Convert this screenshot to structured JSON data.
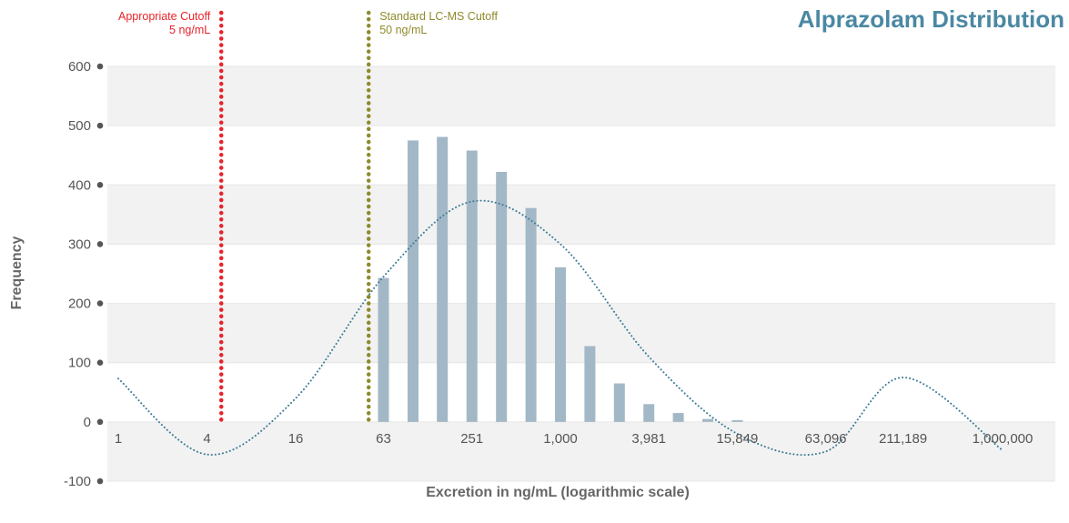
{
  "chart_data": {
    "type": "bar",
    "title": "Alprazolam Distribution",
    "xlabel": "Excretion in ng/mL (logarithmic scale)",
    "ylabel": "Frequency",
    "x_scale": "log",
    "x_ticks": [
      "1",
      "4",
      "16",
      "63",
      "251",
      "1,000",
      "3,981",
      "15,849",
      "63,096",
      "211,189",
      "1,000,000"
    ],
    "ylim": [
      -100,
      600
    ],
    "y_ticks": [
      "600",
      "500",
      "400",
      "300",
      "200",
      "100",
      "0",
      "-100"
    ],
    "grid": "alternating horizontal bands",
    "bars": {
      "x": [
        63,
        100,
        158,
        251,
        398,
        631,
        1000,
        1585,
        2512,
        3981,
        6310,
        10000,
        15849
      ],
      "values": [
        243,
        475,
        481,
        458,
        422,
        361,
        261,
        128,
        65,
        30,
        15,
        5,
        3
      ]
    },
    "trend_line": {
      "style": "dotted",
      "x": [
        1,
        4,
        16,
        63,
        251,
        1000,
        3981,
        15849,
        63096,
        211189,
        1000000
      ],
      "values": [
        73,
        -55,
        40,
        245,
        372,
        300,
        110,
        -20,
        -50,
        75,
        -48
      ]
    },
    "cutoffs": [
      {
        "label": "Appropriate Cutoff",
        "value_label": "5 ng/mL",
        "x": 5,
        "color": "#e8232a"
      },
      {
        "label": "Standard LC-MS Cutoff",
        "value_label": "50 ng/mL",
        "x": 50,
        "color": "#8f8a2b"
      }
    ],
    "colors": {
      "bar": "#a3b8c6",
      "trend": "#3d7c98",
      "title": "#4a88a3",
      "band": "#f2f2f2"
    }
  }
}
